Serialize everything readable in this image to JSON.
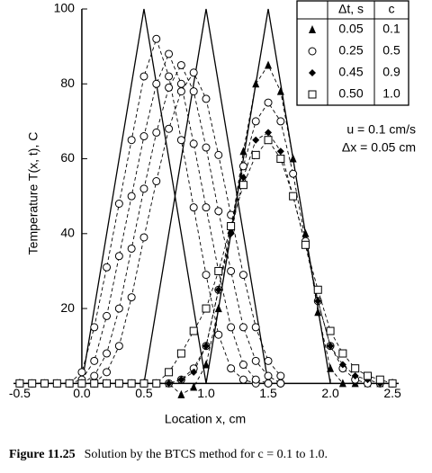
{
  "chart_data": {
    "type": "line",
    "y_label": "Temperature T(x, t), C",
    "x_label": "Location x, cm",
    "annotations": [
      "u = 0.1 cm/s",
      "Δx = 0.05 cm"
    ],
    "xlim": [
      -0.55,
      2.55
    ],
    "ylim": [
      -4,
      100
    ],
    "xticks": [
      -0.5,
      {
        "value": 0,
        "label": "0.0"
      },
      0.5,
      {
        "value": 1,
        "label": "1.0"
      },
      1.5,
      {
        "value": 2,
        "label": "2.0"
      },
      2.5
    ],
    "yticks": [
      20,
      40,
      60,
      80,
      100
    ],
    "color": "#000000",
    "legend": {
      "headers": [
        "Δt, s",
        "c"
      ],
      "rows": [
        {
          "marker": "triangle",
          "cells": [
            "0.05",
            "0.1"
          ]
        },
        {
          "marker": "circle",
          "cells": [
            "0.25",
            "0.5"
          ]
        },
        {
          "marker": "diamond",
          "cells": [
            "0.45",
            "0.9"
          ]
        },
        {
          "marker": "square",
          "cells": [
            "0.50",
            "1.0"
          ]
        }
      ]
    },
    "series": [
      {
        "line": "solid",
        "marker": "none",
        "x": [
          0,
          0.5,
          1
        ],
        "values": [
          0,
          100,
          0
        ]
      },
      {
        "line": "solid",
        "marker": "none",
        "x": [
          0.5,
          1,
          1.5
        ],
        "values": [
          0,
          100,
          0
        ]
      },
      {
        "line": "solid",
        "marker": "none",
        "x": [
          1,
          1.5,
          2
        ],
        "values": [
          0,
          100,
          0
        ]
      },
      {
        "line": "dashed",
        "marker": "circle",
        "x": [
          -0.1,
          0,
          0.1,
          0.2,
          0.3,
          0.4,
          0.5,
          0.6,
          0.7,
          0.8,
          0.9,
          1,
          1.1,
          1.2,
          1.3,
          1.4,
          1.5,
          1.6
        ],
        "values": [
          0,
          3,
          15,
          31,
          48,
          65,
          82,
          92,
          82,
          65,
          47,
          29,
          13,
          4,
          1,
          0,
          0,
          0
        ]
      },
      {
        "line": "dashed",
        "marker": "circle",
        "x": [
          -0.1,
          0,
          0.1,
          0.2,
          0.3,
          0.4,
          0.5,
          0.6,
          0.7,
          0.8,
          0.9,
          1,
          1.1,
          1.2,
          1.3,
          1.4,
          1.5,
          1.6
        ],
        "values": [
          0,
          1,
          6,
          18,
          34,
          50,
          66,
          80,
          88,
          80,
          64,
          47,
          30,
          15,
          5,
          1,
          0,
          0
        ]
      },
      {
        "line": "dashed",
        "marker": "circle",
        "x": [
          -0.1,
          0,
          0.1,
          0.2,
          0.3,
          0.4,
          0.5,
          0.6,
          0.7,
          0.8,
          0.9,
          1,
          1.1,
          1.2,
          1.3,
          1.4,
          1.5,
          1.6
        ],
        "values": [
          0,
          0,
          2,
          8,
          20,
          36,
          52,
          67,
          79,
          85,
          78,
          63,
          46,
          30,
          15,
          6,
          2,
          0
        ]
      },
      {
        "line": "dashed",
        "marker": "circle",
        "x": [
          -0.1,
          0,
          0.1,
          0.2,
          0.3,
          0.4,
          0.5,
          0.6,
          0.7,
          0.8,
          0.9,
          1,
          1.1,
          1.2,
          1.3,
          1.4,
          1.5,
          1.6
        ],
        "values": [
          0,
          0,
          0,
          3,
          10,
          23,
          39,
          54,
          68,
          78,
          83,
          76,
          61,
          45,
          29,
          15,
          6,
          2
        ]
      },
      {
        "line": "dashed",
        "marker": "triangle",
        "x": [
          -0.5,
          -0.4,
          -0.3,
          -0.2,
          -0.1,
          0,
          0.1,
          0.2,
          0.3,
          0.4,
          0.5,
          0.6,
          0.7,
          0.8,
          0.9,
          1,
          1.1,
          1.2,
          1.3,
          1.4,
          1.5,
          1.6,
          1.7,
          1.8,
          1.9,
          2,
          2.1,
          2.2,
          2.3,
          2.4,
          2.5
        ],
        "values": [
          0,
          0,
          0,
          0,
          0,
          0,
          0,
          0,
          0,
          0,
          0,
          0,
          0,
          -3,
          -1,
          5,
          20,
          41,
          62,
          80,
          85,
          78,
          60,
          40,
          19,
          4,
          0,
          0,
          0,
          0,
          0
        ]
      },
      {
        "line": "dashed",
        "marker": "circle",
        "x": [
          -0.5,
          -0.4,
          -0.3,
          -0.2,
          -0.1,
          0,
          0.1,
          0.2,
          0.3,
          0.4,
          0.5,
          0.6,
          0.7,
          0.8,
          0.9,
          1,
          1.1,
          1.2,
          1.3,
          1.4,
          1.5,
          1.6,
          1.7,
          1.8,
          1.9,
          2,
          2.1,
          2.2,
          2.3,
          2.4,
          2.5
        ],
        "values": [
          0,
          0,
          0,
          0,
          0,
          0,
          0,
          0,
          0,
          0,
          0,
          0,
          0,
          1,
          4,
          10,
          25,
          42,
          58,
          70,
          75,
          70,
          56,
          38,
          22,
          10,
          4,
          1,
          0,
          0,
          0
        ]
      },
      {
        "line": "dashed",
        "marker": "diamond",
        "x": [
          -0.5,
          -0.4,
          -0.3,
          -0.2,
          -0.1,
          0,
          0.1,
          0.2,
          0.3,
          0.4,
          0.5,
          0.6,
          0.7,
          0.8,
          0.9,
          1,
          1.1,
          1.2,
          1.3,
          1.4,
          1.5,
          1.6,
          1.7,
          1.8,
          1.9,
          2,
          2.1,
          2.2,
          2.3,
          2.4,
          2.5
        ],
        "values": [
          0,
          0,
          0,
          0,
          0,
          0,
          0,
          0,
          0,
          0,
          0,
          0,
          0,
          1,
          3,
          10,
          25,
          40,
          55,
          65,
          67,
          62,
          50,
          37,
          22,
          10,
          5,
          2,
          1,
          0,
          0
        ]
      },
      {
        "line": "dashed",
        "marker": "square",
        "x": [
          -0.5,
          -0.4,
          -0.3,
          -0.2,
          -0.1,
          0,
          0.1,
          0.2,
          0.3,
          0.4,
          0.5,
          0.6,
          0.7,
          0.8,
          0.9,
          1,
          1.1,
          1.2,
          1.3,
          1.4,
          1.5,
          1.6,
          1.7,
          1.8,
          1.9,
          2,
          2.1,
          2.2,
          2.3,
          2.4,
          2.5
        ],
        "values": [
          0,
          0,
          0,
          0,
          0,
          0,
          0,
          0,
          0,
          0,
          0,
          0,
          3,
          8,
          14,
          20,
          30,
          42,
          53,
          61,
          65,
          60,
          50,
          37,
          25,
          14,
          8,
          4,
          2,
          1,
          0
        ]
      }
    ]
  },
  "caption": {
    "label": "Figure 11.25",
    "text": "Solution by the BTCS method for c = 0.1 to 1.0."
  }
}
